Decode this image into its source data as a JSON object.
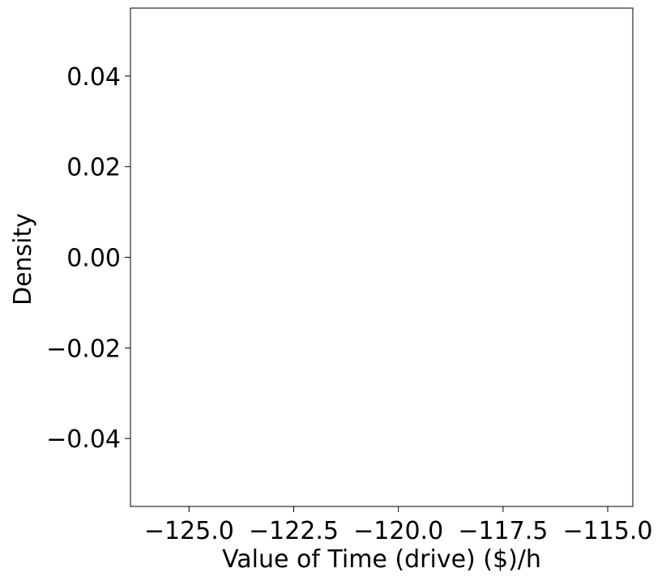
{
  "chart_data": {
    "type": "line",
    "title": "",
    "xlabel": "Value of Time (drive) ($)/h",
    "ylabel": "Density",
    "xlim": [
      -126.4,
      -114.4
    ],
    "ylim": [
      -0.055,
      0.055
    ],
    "xticks": [
      -125.0,
      -122.5,
      -120.0,
      -117.5,
      -115.0
    ],
    "xtick_labels": [
      "−125.0",
      "−122.5",
      "−120.0",
      "−117.5",
      "−115.0"
    ],
    "yticks": [
      0.04,
      0.02,
      0.0,
      -0.02,
      -0.04
    ],
    "ytick_labels": [
      "0.04",
      "0.02",
      "0.00",
      "−0.02",
      "−0.04"
    ],
    "grid": false,
    "series": []
  }
}
